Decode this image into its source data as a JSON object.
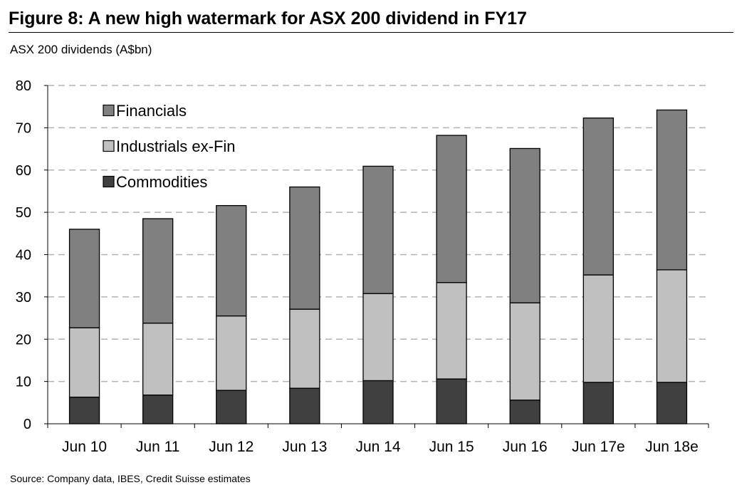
{
  "figure": {
    "title": "Figure 8: A new high watermark for ASX 200 dividend in FY17",
    "subtitle": "ASX 200 dividends (A$bn)",
    "source": "Source: Company data, IBES, Credit Suisse estimates"
  },
  "chart_data": {
    "type": "bar",
    "stacked": true,
    "title": "A new high watermark for ASX 200 dividend in FY17",
    "ylabel": "ASX 200 dividends (A$bn)",
    "xlabel": "",
    "ylim": [
      0,
      80
    ],
    "yticks": [
      0,
      10,
      20,
      30,
      40,
      50,
      60,
      70,
      80
    ],
    "grid": true,
    "legend_position": "top-left",
    "categories": [
      "Jun 10",
      "Jun 11",
      "Jun 12",
      "Jun 13",
      "Jun 14",
      "Jun 15",
      "Jun 16",
      "Jun 17e",
      "Jun 18e"
    ],
    "series": [
      {
        "name": "Commodities",
        "color": "#404040",
        "values": [
          6.3,
          6.8,
          7.9,
          8.4,
          10.2,
          10.6,
          5.6,
          9.8,
          9.8
        ]
      },
      {
        "name": "Industrials ex-Fin",
        "color": "#c0c0c0",
        "values": [
          16.4,
          17.0,
          17.6,
          18.7,
          20.6,
          22.8,
          23.0,
          25.4,
          26.6
        ]
      },
      {
        "name": "Financials",
        "color": "#808080",
        "values": [
          23.3,
          24.7,
          26.1,
          28.9,
          30.1,
          34.8,
          36.5,
          37.1,
          37.8
        ]
      }
    ],
    "legend_order": [
      "Financials",
      "Industrials ex-Fin",
      "Commodities"
    ]
  }
}
